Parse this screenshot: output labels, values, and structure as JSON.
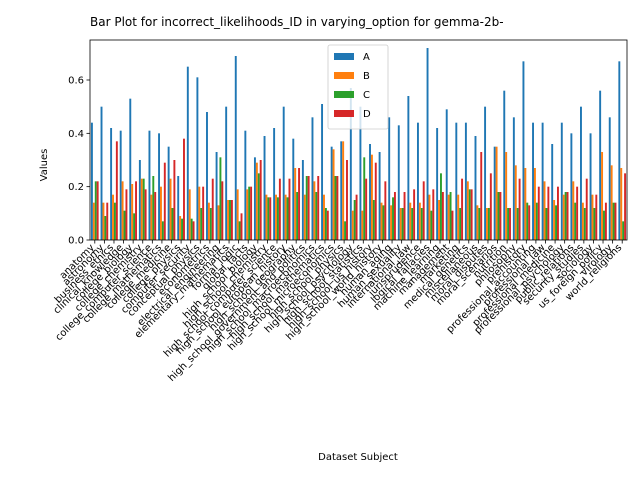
{
  "chart_data": {
    "type": "bar",
    "title": "Bar Plot for incorrect_likelihoods_ID in varying_option for gemma-2b-",
    "xlabel": "Dataset Subject",
    "ylabel": "Values",
    "ylim": [
      0,
      0.75
    ],
    "yticks": [
      "0.0",
      "0.2",
      "0.4",
      "0.6"
    ],
    "legend_position": "top-center",
    "grid": false,
    "colors": {
      "A": "#1f77b4",
      "B": "#ff7f0e",
      "C": "#2ca02c",
      "D": "#d62728"
    },
    "categories": [
      "anatomy",
      "astronomy",
      "business_ethics",
      "clinical_knowledge",
      "college_biology",
      "college_chemistry",
      "college_computer_science",
      "college_mathematics",
      "college_medicine",
      "college_physics",
      "computer_security",
      "conceptual_physics",
      "econometrics",
      "electrical_engineering",
      "elementary_mathematics",
      "formal_logic",
      "global_facts",
      "high_school_biology",
      "high_school_chemistry",
      "high_school_computer_science",
      "high_school_european_history",
      "high_school_geography",
      "high_school_government_and_politics",
      "high_school_macroeconomics",
      "high_school_mathematics",
      "high_school_microeconomics",
      "high_school_physics",
      "high_school_psychology",
      "high_school_statistics",
      "high_school_us_history",
      "high_school_world_history",
      "human_aging",
      "human_sexuality",
      "international_law",
      "jurisprudence",
      "logical_fallacies",
      "machine_learning",
      "management",
      "marketing",
      "medical_genetics",
      "miscellaneous",
      "moral_disputes",
      "moral_scenarios",
      "nutrition",
      "philosophy",
      "prehistory",
      "professional_accounting",
      "professional_law",
      "professional_medicine",
      "professional_psychology",
      "public_relations",
      "security_studies",
      "sociology",
      "us_foreign_policy",
      "virology",
      "world_religions"
    ],
    "series": [
      {
        "name": "A",
        "values": [
          0.44,
          0.5,
          0.42,
          0.41,
          0.53,
          0.3,
          0.41,
          0.4,
          0.35,
          0.24,
          0.65,
          0.61,
          0.48,
          0.33,
          0.5,
          0.69,
          0.41,
          0.31,
          0.39,
          0.42,
          0.5,
          0.38,
          0.3,
          0.46,
          0.51,
          0.35,
          0.37,
          0.57,
          0.5,
          0.36,
          0.33,
          0.46,
          0.43,
          0.54,
          0.44,
          0.72,
          0.42,
          0.49,
          0.44,
          0.44,
          0.39,
          0.5,
          0.35,
          0.56,
          0.46,
          0.67,
          0.44,
          0.44,
          0.36,
          0.44,
          0.4,
          0.5,
          0.4,
          0.56,
          0.46,
          0.67
        ]
      },
      {
        "name": "B",
        "values": [
          0.14,
          0.14,
          0.17,
          0.22,
          0.21,
          0.23,
          0.17,
          0.2,
          0.23,
          0.09,
          0.19,
          0.2,
          0.14,
          0.13,
          0.15,
          0.19,
          0.19,
          0.29,
          0.17,
          0.17,
          0.17,
          0.27,
          0.17,
          0.22,
          0.17,
          0.34,
          0.37,
          0.11,
          0.11,
          0.32,
          0.14,
          0.13,
          0.12,
          0.14,
          0.14,
          0.17,
          0.15,
          0.17,
          0.17,
          0.22,
          0.13,
          0.12,
          0.35,
          0.33,
          0.28,
          0.27,
          0.27,
          0.22,
          0.15,
          0.17,
          0.22,
          0.14,
          0.17,
          0.33,
          0.28,
          0.27
        ]
      },
      {
        "name": "C",
        "values": [
          0.22,
          0.09,
          0.14,
          0.11,
          0.1,
          0.23,
          0.24,
          0.07,
          0.12,
          0.08,
          0.08,
          0.12,
          0.12,
          0.31,
          0.15,
          0.07,
          0.2,
          0.25,
          0.16,
          0.16,
          0.16,
          0.18,
          0.24,
          0.18,
          0.12,
          0.24,
          0.07,
          0.15,
          0.31,
          0.15,
          0.13,
          0.16,
          0.12,
          0.12,
          0.12,
          0.11,
          0.25,
          0.18,
          0.12,
          0.19,
          0.12,
          0.12,
          0.18,
          0.12,
          0.12,
          0.14,
          0.14,
          0.12,
          0.13,
          0.18,
          0.14,
          0.12,
          0.12,
          0.11,
          0.14,
          0.07
        ]
      },
      {
        "name": "D",
        "values": [
          0.22,
          0.14,
          0.37,
          0.19,
          0.22,
          0.19,
          0.18,
          0.29,
          0.3,
          0.38,
          0.07,
          0.2,
          0.23,
          0.22,
          0.15,
          0.1,
          0.2,
          0.3,
          0.16,
          0.23,
          0.23,
          0.27,
          0.24,
          0.24,
          0.11,
          0.24,
          0.3,
          0.17,
          0.23,
          0.29,
          0.22,
          0.18,
          0.18,
          0.19,
          0.22,
          0.19,
          0.18,
          0.11,
          0.23,
          0.19,
          0.33,
          0.25,
          0.18,
          0.12,
          0.23,
          0.13,
          0.2,
          0.2,
          0.2,
          0.18,
          0.2,
          0.23,
          0.17,
          0.14,
          0.14,
          0.25
        ]
      }
    ]
  }
}
